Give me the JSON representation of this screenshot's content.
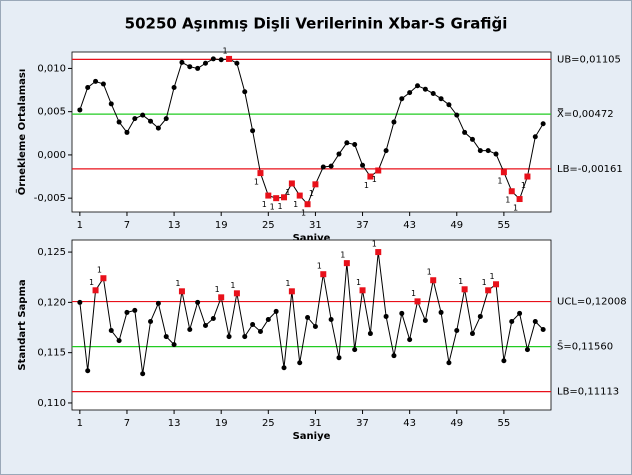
{
  "title": "50250 Aşınmış Dişli Verilerinin Xbar-S Grafiği",
  "chart_data": [
    {
      "type": "line",
      "x_label": "Saniye",
      "y_label": "Örnekleme Ortalaması",
      "x": [
        1,
        2,
        3,
        4,
        5,
        6,
        7,
        8,
        9,
        10,
        11,
        12,
        13,
        14,
        15,
        16,
        17,
        18,
        19,
        20,
        21,
        22,
        23,
        24,
        25,
        26,
        27,
        28,
        29,
        30,
        31,
        32,
        33,
        34,
        35,
        36,
        37,
        38,
        39,
        40,
        41,
        42,
        43,
        44,
        45,
        46,
        47,
        48,
        49,
        50,
        51,
        52,
        53,
        54,
        55,
        56,
        57,
        58,
        59,
        60
      ],
      "values": [
        0.0052,
        0.0078,
        0.0085,
        0.0082,
        0.0059,
        0.0038,
        0.0026,
        0.0042,
        0.0046,
        0.0039,
        0.0031,
        0.0042,
        0.0078,
        0.0107,
        0.0102,
        0.01,
        0.0106,
        0.0111,
        0.011,
        0.0111,
        0.0106,
        0.0073,
        0.0028,
        -0.0021,
        -0.0047,
        -0.005,
        -0.0049,
        -0.0033,
        -0.0047,
        -0.0057,
        -0.0034,
        -0.0014,
        -0.0013,
        0.0001,
        0.0014,
        0.0012,
        -0.0012,
        -0.0025,
        -0.0018,
        0.0005,
        0.0038,
        0.0065,
        0.0072,
        0.008,
        0.0076,
        0.0071,
        0.0065,
        0.0058,
        0.0046,
        0.0026,
        0.0018,
        0.0005,
        0.0005,
        0.0001,
        -0.002,
        -0.0042,
        -0.0051,
        -0.0025,
        0.0021,
        0.0036
      ],
      "point_labels": [
        null,
        null,
        null,
        null,
        null,
        null,
        null,
        null,
        null,
        null,
        null,
        null,
        null,
        null,
        null,
        null,
        null,
        null,
        null,
        "1",
        null,
        null,
        null,
        "1",
        "1",
        "1",
        "1",
        "1",
        "1",
        "1",
        "1",
        null,
        null,
        null,
        null,
        null,
        null,
        "1",
        "1",
        null,
        null,
        null,
        null,
        null,
        null,
        null,
        null,
        null,
        null,
        null,
        null,
        null,
        null,
        null,
        "1",
        "1",
        "1",
        "1",
        null,
        null
      ],
      "color": "#000000",
      "flag_color": "#e8101a",
      "limits": [
        {
          "label": "UB=0,01105",
          "value": 0.01105,
          "color": "#e8101a"
        },
        {
          "label": "X̿=0,00472",
          "value": 0.00472,
          "color": "#22cc22"
        },
        {
          "label": "LB=-0,00161",
          "value": -0.00161,
          "color": "#e8101a"
        }
      ],
      "xlim": [
        0,
        61
      ],
      "xticks": [
        1,
        7,
        13,
        19,
        25,
        31,
        37,
        43,
        49,
        55
      ],
      "ylim": [
        -0.0066,
        0.0119
      ],
      "yticks": [
        {
          "value": -0.005,
          "label": "-0,005"
        },
        {
          "value": 0,
          "label": "0,000"
        },
        {
          "value": 0.005,
          "label": "0,005"
        },
        {
          "value": 0.01,
          "label": "0,010"
        }
      ]
    },
    {
      "type": "line",
      "x_label": "Saniye",
      "y_label": "Standart Sapma",
      "x": [
        1,
        2,
        3,
        4,
        5,
        6,
        7,
        8,
        9,
        10,
        11,
        12,
        13,
        14,
        15,
        16,
        17,
        18,
        19,
        20,
        21,
        22,
        23,
        24,
        25,
        26,
        27,
        28,
        29,
        30,
        31,
        32,
        33,
        34,
        35,
        36,
        37,
        38,
        39,
        40,
        41,
        42,
        43,
        44,
        45,
        46,
        47,
        48,
        49,
        50,
        51,
        52,
        53,
        54,
        55,
        56,
        57,
        58,
        59,
        60
      ],
      "values": [
        0.12,
        0.1132,
        0.1212,
        0.1224,
        0.1172,
        0.1162,
        0.119,
        0.1192,
        0.1129,
        0.1181,
        0.1199,
        0.1166,
        0.1158,
        0.1211,
        0.1173,
        0.12,
        0.1177,
        0.1184,
        0.1205,
        0.1166,
        0.1209,
        0.1166,
        0.1178,
        0.1171,
        0.1183,
        0.1191,
        0.1135,
        0.1211,
        0.114,
        0.1185,
        0.1176,
        0.1228,
        0.1183,
        0.1145,
        0.1239,
        0.1153,
        0.1212,
        0.1169,
        0.125,
        0.1186,
        0.1147,
        0.1189,
        0.1163,
        0.1201,
        0.1182,
        0.1222,
        0.119,
        0.114,
        0.1172,
        0.1213,
        0.1169,
        0.1186,
        0.1212,
        0.1218,
        0.1142,
        0.1181,
        0.1189,
        0.1153,
        0.1181,
        0.1173
      ],
      "point_labels": [
        null,
        null,
        "1",
        "1",
        null,
        null,
        null,
        null,
        null,
        null,
        null,
        null,
        null,
        "1",
        null,
        null,
        null,
        null,
        "1",
        null,
        "1",
        null,
        null,
        null,
        null,
        null,
        null,
        "1",
        null,
        null,
        null,
        "1",
        null,
        null,
        "1",
        null,
        "1",
        null,
        "1",
        null,
        null,
        null,
        null,
        "1",
        null,
        "1",
        null,
        null,
        null,
        "1",
        null,
        null,
        "1",
        "1",
        null,
        null,
        null,
        null,
        null,
        null
      ],
      "color": "#000000",
      "flag_color": "#e8101a",
      "limits": [
        {
          "label": "UCL=0,12008",
          "value": 0.12008,
          "color": "#e8101a"
        },
        {
          "label": "S̄=0,11560",
          "value": 0.1156,
          "color": "#22cc22"
        },
        {
          "label": "LB=0,11113",
          "value": 0.11113,
          "color": "#e8101a"
        }
      ],
      "xlim": [
        0,
        61
      ],
      "xticks": [
        1,
        7,
        13,
        19,
        25,
        31,
        37,
        43,
        49,
        55
      ],
      "ylim": [
        0.1093,
        0.1262
      ],
      "yticks": [
        {
          "value": 0.11,
          "label": "0,110"
        },
        {
          "value": 0.115,
          "label": "0,115"
        },
        {
          "value": 0.12,
          "label": "0,120"
        },
        {
          "value": 0.125,
          "label": "0,125"
        }
      ]
    }
  ]
}
